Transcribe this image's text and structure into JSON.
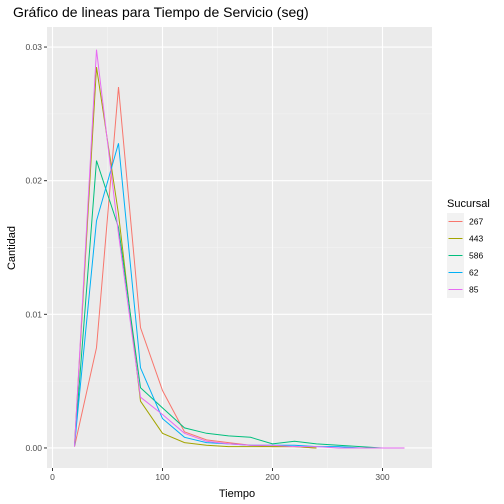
{
  "chart_data": {
    "type": "line",
    "title": "Gráfico de lineas para Tiempo de Servicio (seg)",
    "xlabel": "Tiempo",
    "ylabel": "Cantidad",
    "xlim": [
      -5,
      345
    ],
    "ylim": [
      -0.0015,
      0.0315
    ],
    "x_ticks": [
      0,
      100,
      200,
      300
    ],
    "x_tick_labels": [
      "0",
      "100",
      "200",
      "300"
    ],
    "y_ticks": [
      0,
      0.01,
      0.02,
      0.03
    ],
    "y_tick_labels": [
      "0.00",
      "0.01",
      "0.02",
      "0.03"
    ],
    "grid": true,
    "legend_title": "Sucursal",
    "legend_position": "right",
    "series": [
      {
        "name": "267",
        "color": "#F8766D",
        "x": [
          20,
          40,
          60,
          80,
          100,
          120,
          140,
          160,
          180,
          200,
          220,
          240
        ],
        "y": [
          0.0001,
          0.0075,
          0.027,
          0.009,
          0.0043,
          0.0012,
          0.0006,
          0.0004,
          0.0002,
          0.0001,
          0.0001,
          0.0
        ]
      },
      {
        "name": "443",
        "color": "#A3A500",
        "x": [
          20,
          40,
          60,
          80,
          100,
          120,
          140,
          160,
          180,
          200,
          220,
          240
        ],
        "y": [
          0.0002,
          0.0285,
          0.0175,
          0.0035,
          0.0011,
          0.0004,
          0.0002,
          0.0001,
          0.0001,
          0.0001,
          0.0001,
          0.0
        ]
      },
      {
        "name": "586",
        "color": "#00BF7D",
        "x": [
          20,
          40,
          60,
          80,
          100,
          120,
          140,
          160,
          180,
          200,
          220,
          240,
          260,
          280,
          300
        ],
        "y": [
          0.0001,
          0.0215,
          0.0165,
          0.0045,
          0.003,
          0.0015,
          0.0011,
          0.0009,
          0.0008,
          0.0003,
          0.0005,
          0.0003,
          0.0002,
          0.0001,
          0.0
        ]
      },
      {
        "name": "62",
        "color": "#00B0F6",
        "x": [
          20,
          40,
          60,
          80,
          100,
          120,
          140,
          160,
          180,
          200,
          220,
          240,
          260,
          280
        ],
        "y": [
          0.0002,
          0.017,
          0.0228,
          0.006,
          0.0022,
          0.0008,
          0.0004,
          0.0003,
          0.0002,
          0.0002,
          0.0002,
          0.0001,
          0.0001,
          0.0
        ]
      },
      {
        "name": "85",
        "color": "#E76BF3",
        "x": [
          20,
          40,
          60,
          80,
          100,
          120,
          140,
          160,
          180,
          200,
          220,
          240,
          260,
          280,
          300,
          320
        ],
        "y": [
          0.0001,
          0.0298,
          0.016,
          0.0038,
          0.0025,
          0.0011,
          0.0005,
          0.0003,
          0.0002,
          0.0002,
          0.0001,
          0.0001,
          0.0,
          0.0,
          0.0,
          0.0
        ]
      }
    ]
  }
}
